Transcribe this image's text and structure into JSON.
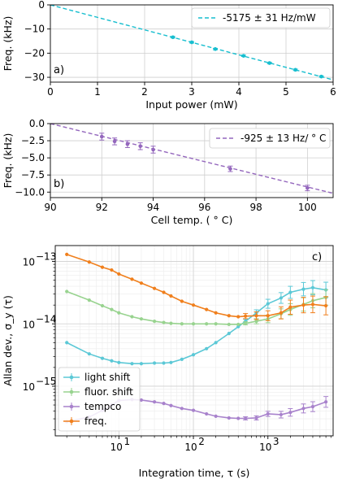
{
  "chart_data": [
    {
      "id": "a",
      "type": "scatter",
      "panel_label": "a)",
      "xlabel": "Input power (mW)",
      "ylabel": "Freq. (kHz)",
      "xlim": [
        0,
        6
      ],
      "ylim": [
        -32,
        0
      ],
      "xticks": [
        0,
        1,
        2,
        3,
        4,
        5,
        6
      ],
      "yticks": [
        0,
        -10,
        -20,
        -30
      ],
      "grid": true,
      "legend_position": "top-right",
      "colors": {
        "fit": "#17becf",
        "points": "#17becf"
      },
      "fit": {
        "label": "-5175 ± 31 Hz/mW",
        "slope": -5.175,
        "intercept": 0
      },
      "points": [
        {
          "x": 2.6,
          "y": -13.4,
          "err": 0.3
        },
        {
          "x": 3.0,
          "y": -15.5,
          "err": 0.3
        },
        {
          "x": 3.5,
          "y": -18.3,
          "err": 0.3
        },
        {
          "x": 4.1,
          "y": -21.1,
          "err": 0.3
        },
        {
          "x": 4.65,
          "y": -24.1,
          "err": 0.3
        },
        {
          "x": 5.2,
          "y": -26.9,
          "err": 0.3
        },
        {
          "x": 5.75,
          "y": -29.7,
          "err": 0.3
        }
      ]
    },
    {
      "id": "b",
      "type": "scatter",
      "panel_label": "b)",
      "xlabel": "Cell temp. ( ° C)",
      "ylabel": "Freq. (kHz)",
      "xlim": [
        90,
        101
      ],
      "ylim": [
        -10.8,
        0
      ],
      "xticks": [
        90,
        92,
        94,
        96,
        98,
        100
      ],
      "yticks": [
        0.0,
        -2.5,
        -5.0,
        -7.5,
        -10.0
      ],
      "ytick_labels": [
        "0.0",
        "−2.5",
        "−5.0",
        "−7.5",
        "−10.0"
      ],
      "grid": true,
      "legend_position": "top-right",
      "colors": {
        "fit": "#9467bd",
        "points": "#9467bd"
      },
      "fit": {
        "label": "-925 ± 13 Hz/ ° C",
        "slope": -0.925,
        "intercept": 83.25
      },
      "points": [
        {
          "x": 92.0,
          "y": -1.9,
          "err": 0.5
        },
        {
          "x": 92.5,
          "y": -2.6,
          "err": 0.5
        },
        {
          "x": 93.0,
          "y": -3.0,
          "err": 0.5
        },
        {
          "x": 93.5,
          "y": -3.3,
          "err": 0.5
        },
        {
          "x": 94.0,
          "y": -3.8,
          "err": 0.5
        },
        {
          "x": 97.0,
          "y": -6.6,
          "err": 0.4
        },
        {
          "x": 100.0,
          "y": -9.4,
          "err": 0.4
        }
      ]
    },
    {
      "id": "c",
      "type": "line",
      "panel_label": "c)",
      "xlabel": "Integration time, τ (s)",
      "ylabel": "Allan dev., σ_y (τ)",
      "xscale": "log",
      "yscale": "log",
      "xlim": [
        1.4,
        7500
      ],
      "ylim": [
        1.6e-16,
        1.8e-13
      ],
      "xticks": [
        10,
        100,
        1000
      ],
      "xtick_labels": [
        "10",
        "10",
        "10"
      ],
      "xtick_exponents": [
        "1",
        "2",
        "3"
      ],
      "yticks": [
        1e-13,
        1e-14,
        1e-15
      ],
      "ytick_labels": [
        "10",
        "10",
        "10"
      ],
      "ytick_exponents": [
        "−13",
        "−14",
        "−15"
      ],
      "grid": true,
      "legend_position": "lower-left",
      "x": [
        2,
        4,
        6,
        8,
        10,
        15,
        20,
        30,
        40,
        50,
        70,
        100,
        150,
        200,
        300,
        400,
        500,
        700,
        1000,
        1500,
        2000,
        3000,
        4000,
        6000
      ],
      "series": [
        {
          "name": "light shift",
          "color": "#5bc8d6",
          "values": [
            5e-15,
            3.3e-15,
            2.8e-15,
            2.55e-15,
            2.4e-15,
            2.3e-15,
            2.3e-15,
            2.35e-15,
            2.35e-15,
            2.4e-15,
            2.7e-15,
            3.2e-15,
            4e-15,
            5e-15,
            7e-15,
            9e-15,
            1.1e-14,
            1.5e-14,
            2.1e-14,
            2.6e-14,
            3.2e-14,
            3.6e-14,
            3.8e-14,
            3.5e-14
          ],
          "errors": [
            0,
            0,
            0,
            0,
            0,
            0,
            0,
            0,
            0,
            0,
            0,
            0,
            0,
            0,
            0,
            0,
            0.08,
            0.12,
            0.18,
            0.22,
            0.25,
            0.28,
            0.3,
            0.33
          ]
        },
        {
          "name": "fluor. shift",
          "color": "#98d38f",
          "values": [
            3.3e-14,
            2.4e-14,
            1.95e-14,
            1.7e-14,
            1.5e-14,
            1.3e-14,
            1.2e-14,
            1.1e-14,
            1.05e-14,
            1.02e-14,
            1e-14,
            1e-14,
            1e-14,
            1e-14,
            9.8e-15,
            9.8e-15,
            1.02e-14,
            1.1e-14,
            1.2e-14,
            1.45e-14,
            1.7e-14,
            2.05e-14,
            2.35e-14,
            2.65e-14
          ],
          "errors": [
            0,
            0,
            0,
            0,
            0,
            0,
            0,
            0,
            0,
            0,
            0,
            0,
            0,
            0,
            0,
            0,
            0.06,
            0.1,
            0.15,
            0.2,
            0.24,
            0.28,
            0.3,
            0.33
          ]
        },
        {
          "name": "tempco",
          "color": "#a882cc",
          "values": [
            2.7e-16,
            3.2e-16,
            4.1e-16,
            5e-16,
            5.9e-16,
            6.1e-16,
            6e-16,
            5.6e-16,
            5.3e-16,
            4.9e-16,
            4.4e-16,
            4.1e-16,
            3.6e-16,
            3.3e-16,
            3.1e-16,
            3.05e-16,
            3.05e-16,
            3.1e-16,
            3.6e-16,
            3.5e-16,
            3.8e-16,
            4.4e-16,
            4.7e-16,
            5.6e-16
          ],
          "errors": [
            0,
            0,
            0,
            0,
            0,
            0,
            0,
            0,
            0,
            0,
            0,
            0,
            0,
            0,
            0,
            0,
            0.06,
            0.08,
            0.1,
            0.13,
            0.15,
            0.18,
            0.2,
            0.22
          ]
        },
        {
          "name": "freq.",
          "color": "#f07f1c",
          "values": [
            1.3e-13,
            9.8e-14,
            8.1e-14,
            7.3e-14,
            6.3e-14,
            5.2e-14,
            4.5e-14,
            3.7e-14,
            3.2e-14,
            2.8e-14,
            2.3e-14,
            2e-14,
            1.7e-14,
            1.5e-14,
            1.35e-14,
            1.3e-14,
            1.33e-14,
            1.35e-14,
            1.35e-14,
            1.5e-14,
            1.85e-14,
            2e-14,
            2.05e-14,
            1.95e-14
          ],
          "errors": [
            0,
            0,
            0,
            0,
            0,
            0,
            0,
            0,
            0,
            0,
            0,
            0,
            0,
            0,
            0,
            0,
            0.1,
            0.15,
            0.2,
            0.25,
            0.3,
            0.33,
            0.36,
            0.4
          ]
        }
      ]
    }
  ]
}
